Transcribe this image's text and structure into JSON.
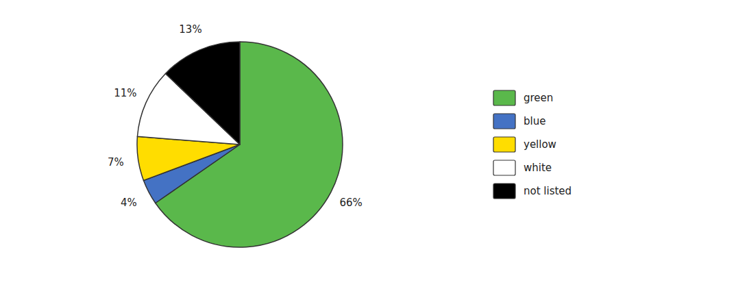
{
  "chart_data": {
    "type": "pie",
    "categories": [
      "green",
      "blue",
      "yellow",
      "white",
      "not listed"
    ],
    "values": [
      66,
      4,
      7,
      11,
      13
    ],
    "value_labels": [
      "66%",
      "4%",
      "7%",
      "11%",
      "13%"
    ],
    "colors": [
      "#5ab84b",
      "#4472c4",
      "#ffdd00",
      "#ffffff",
      "#000000"
    ],
    "data_labels": true,
    "legend": "right"
  }
}
